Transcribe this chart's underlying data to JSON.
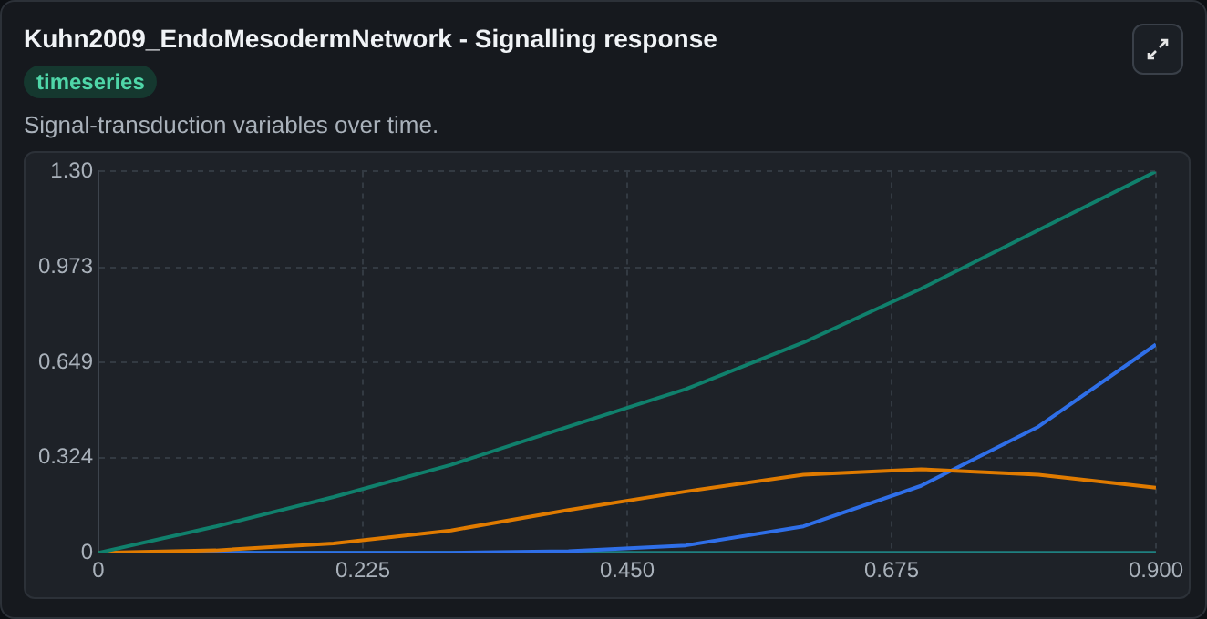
{
  "chart_data": {
    "type": "line",
    "title": "Kuhn2009_EndoMesodermNetwork - Signalling response",
    "subtitle": "Signal-transduction variables over time.",
    "annotations": [
      "timeseries"
    ],
    "x": [
      0,
      0.1,
      0.2,
      0.3,
      0.4,
      0.5,
      0.6,
      0.7,
      0.8,
      0.9
    ],
    "series": [
      {
        "color": "#10806c",
        "values": [
          0,
          0.09,
          0.19,
          0.3,
          0.43,
          0.558,
          0.717,
          0.9,
          1.1,
          1.3
        ]
      },
      {
        "color": "#e07b00",
        "values": [
          0,
          0.008,
          0.032,
          0.076,
          0.146,
          0.209,
          0.266,
          0.285,
          0.266,
          0.222
        ]
      },
      {
        "color": "#2f6fe8",
        "values": [
          0,
          0,
          0,
          0,
          0.005,
          0.025,
          0.09,
          0.228,
          0.43,
          0.71
        ]
      },
      {
        "color": "#1f8080",
        "values": [
          0,
          0,
          0,
          0,
          0,
          0,
          0,
          0,
          0,
          0
        ]
      }
    ],
    "xlim": [
      0,
      0.9
    ],
    "xticks": [
      0,
      0.225,
      {
        "value": 0.45,
        "label": "0.450"
      },
      0.675,
      {
        "value": 0.9,
        "label": "0.900"
      }
    ],
    "ylim": [
      0,
      1.3
    ],
    "yticks": [
      0,
      0.324,
      0.649,
      0.973,
      {
        "value": 1.3,
        "label": "1.30"
      }
    ],
    "grid": true,
    "legend": false,
    "marker": "none",
    "line_style": "solid"
  }
}
